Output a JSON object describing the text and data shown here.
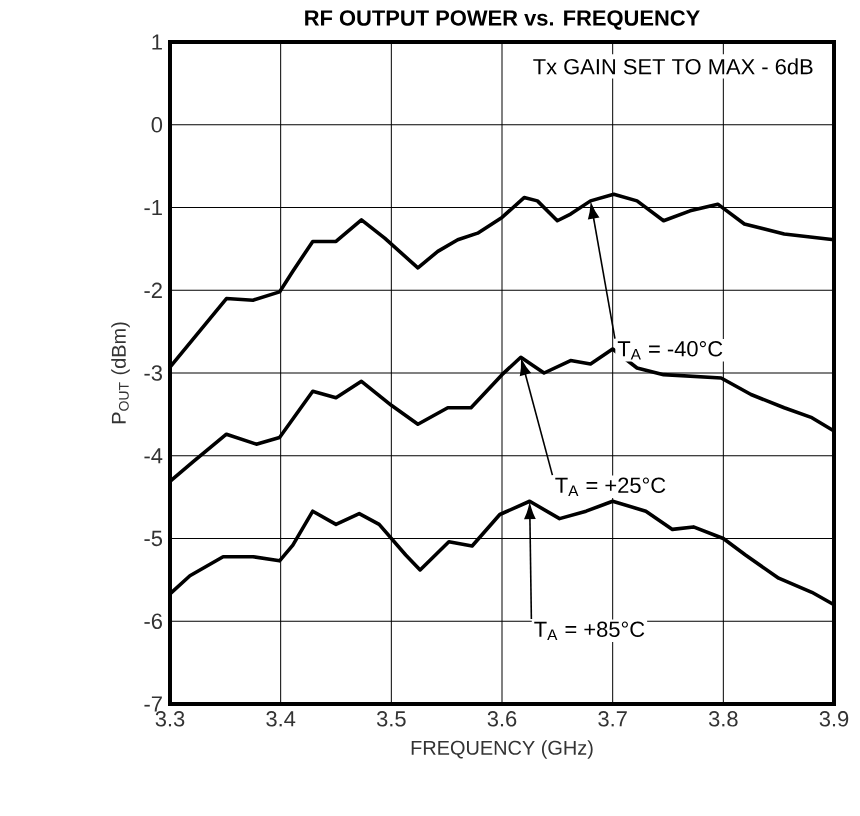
{
  "chart_data": {
    "type": "line",
    "title": "RF OUTPUT POWER vs. FREQUENCY",
    "xlabel": "FREQUENCY (GHz)",
    "ylabel": "P$_{OUT}$ (dBm)",
    "annotations": [
      "Tx GAIN SET TO MAX - 6dB",
      {
        "text": "T$_{A}$ = -40°C",
        "x": 3.68,
        "y": -0.92
      },
      {
        "text": "T$_{A}$ = +25°C",
        "x": 3.617,
        "y": -2.81
      },
      {
        "text": "T$_{A}$ = +85°C",
        "x": 3.625,
        "y": -4.55
      }
    ],
    "xlim": [
      3.3,
      3.9
    ],
    "xticks": [
      3.3,
      3.4,
      3.5,
      3.6,
      3.7,
      3.8,
      3.9
    ],
    "ylim": [
      -7,
      1
    ],
    "yticks": [
      -7,
      -6,
      -5,
      -4,
      -3,
      -2,
      -1,
      0,
      1
    ],
    "grid": true,
    "marker": "none",
    "line_style": "solid",
    "series": [
      {
        "color": "#000000",
        "x": [
          3.3,
          3.324,
          3.351,
          3.375,
          3.399,
          3.411,
          3.429,
          3.45,
          3.473,
          3.494,
          3.524,
          3.542,
          3.56,
          3.578,
          3.6,
          3.62,
          3.632,
          3.65,
          3.662,
          3.68,
          3.701,
          3.722,
          3.746,
          3.77,
          3.795,
          3.819,
          3.855,
          3.9
        ],
        "values": [
          -2.93,
          -2.54,
          -2.1,
          -2.12,
          -2.02,
          -1.77,
          -1.41,
          -1.41,
          -1.15,
          -1.37,
          -1.73,
          -1.53,
          -1.39,
          -1.31,
          -1.12,
          -0.88,
          -0.92,
          -1.16,
          -1.08,
          -0.92,
          -0.84,
          -0.92,
          -1.16,
          -1.04,
          -0.96,
          -1.2,
          -1.32,
          -1.39
        ]
      },
      {
        "color": "#000000",
        "x": [
          3.3,
          3.321,
          3.351,
          3.378,
          3.399,
          3.429,
          3.45,
          3.473,
          3.5,
          3.524,
          3.551,
          3.572,
          3.6,
          3.617,
          3.638,
          3.662,
          3.68,
          3.7,
          3.722,
          3.746,
          3.798,
          3.825,
          3.855,
          3.88,
          3.9
        ],
        "values": [
          -4.31,
          -4.07,
          -3.74,
          -3.86,
          -3.78,
          -3.22,
          -3.3,
          -3.1,
          -3.39,
          -3.62,
          -3.42,
          -3.42,
          -3.02,
          -2.81,
          -3.0,
          -2.85,
          -2.89,
          -2.71,
          -2.94,
          -3.02,
          -3.06,
          -3.26,
          -3.42,
          -3.54,
          -3.7
        ]
      },
      {
        "color": "#000000",
        "x": [
          3.3,
          3.318,
          3.348,
          3.375,
          3.399,
          3.411,
          3.429,
          3.45,
          3.471,
          3.489,
          3.513,
          3.526,
          3.552,
          3.573,
          3.598,
          3.625,
          3.652,
          3.676,
          3.7,
          3.73,
          3.754,
          3.773,
          3.8,
          3.82,
          3.85,
          3.88,
          3.9
        ],
        "values": [
          -5.67,
          -5.45,
          -5.22,
          -5.22,
          -5.27,
          -5.08,
          -4.67,
          -4.83,
          -4.7,
          -4.83,
          -5.2,
          -5.38,
          -5.04,
          -5.09,
          -4.71,
          -4.55,
          -4.76,
          -4.67,
          -4.55,
          -4.67,
          -4.89,
          -4.86,
          -5.0,
          -5.2,
          -5.48,
          -5.65,
          -5.8
        ]
      }
    ]
  }
}
